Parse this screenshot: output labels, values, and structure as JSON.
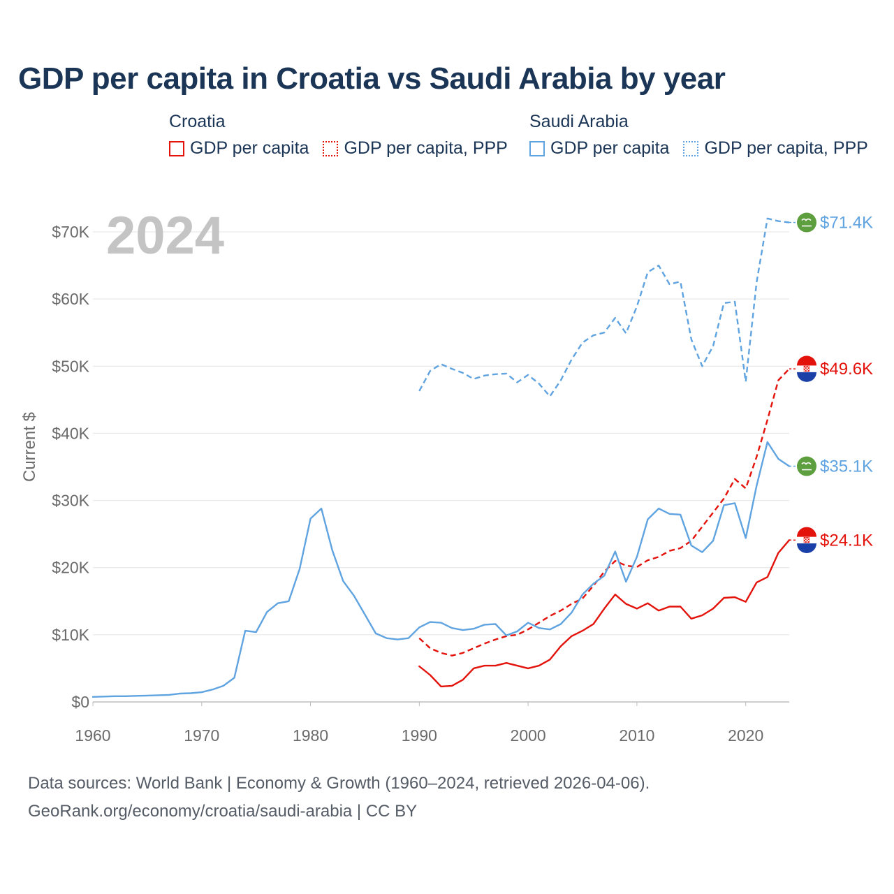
{
  "title": "GDP per capita in Croatia vs Saudi Arabia by year",
  "legend": {
    "croatia": {
      "group": "Croatia",
      "items": [
        {
          "label": "GDP per capita",
          "style": "solid",
          "color": "#e3120b"
        },
        {
          "label": "GDP per capita, PPP",
          "style": "dotted",
          "color": "#e3120b"
        }
      ]
    },
    "saudi": {
      "group": "Saudi Arabia",
      "items": [
        {
          "label": "GDP per capita",
          "style": "solid",
          "color": "#5fa3e0"
        },
        {
          "label": "GDP per capita, PPP",
          "style": "dotted",
          "color": "#5fa3e0"
        }
      ]
    }
  },
  "year_watermark": "2024",
  "end_labels": [
    {
      "text": "$71.4K",
      "color": "#5fa3e0",
      "flag": "saudi-flag",
      "value": 71400
    },
    {
      "text": "$49.6K",
      "color": "#e3120b",
      "flag": "croatia-flag",
      "value": 49600
    },
    {
      "text": "$35.1K",
      "color": "#5fa3e0",
      "flag": "saudi-flag",
      "value": 35100
    },
    {
      "text": "$24.1K",
      "color": "#e3120b",
      "flag": "croatia-flag",
      "value": 24100
    }
  ],
  "source_line_1": "Data sources: World Bank | Economy & Growth (1960–2024, retrieved 2026-04-06).",
  "source_line_2": "GeoRank.org/economy/croatia/saudi-arabia | CC BY",
  "chart_data": {
    "type": "line",
    "title": "GDP per capita in Croatia vs Saudi Arabia by year",
    "xlabel": "",
    "ylabel": "Current $",
    "xlim": [
      1960,
      2024
    ],
    "ylim": [
      0,
      70000
    ],
    "x_ticks": [
      1960,
      1970,
      1980,
      1990,
      2000,
      2010,
      2020
    ],
    "x_tick_labels": [
      "1960",
      "1970",
      "1980",
      "1990",
      "2000",
      "2010",
      "2020"
    ],
    "y_ticks": [
      0,
      10000,
      20000,
      30000,
      40000,
      50000,
      60000,
      70000
    ],
    "y_tick_labels": [
      "$0",
      "$10K",
      "$20K",
      "$30K",
      "$40K",
      "$50K",
      "$60K",
      "$70K"
    ],
    "grid": true,
    "series": [
      {
        "name": "Saudi Arabia GDP per capita, PPP",
        "country": "Saudi Arabia",
        "color": "#5fa3e0",
        "dashed": true,
        "x": [
          1990,
          1991,
          1992,
          1993,
          1994,
          1995,
          1996,
          1997,
          1998,
          1999,
          2000,
          2001,
          2002,
          2003,
          2004,
          2005,
          2006,
          2007,
          2008,
          2009,
          2010,
          2011,
          2012,
          2013,
          2014,
          2015,
          2016,
          2017,
          2018,
          2019,
          2020,
          2021,
          2022,
          2023,
          2024
        ],
        "y": [
          46300,
          49300,
          50300,
          49600,
          49000,
          48100,
          48600,
          48800,
          48900,
          47600,
          48700,
          47400,
          45500,
          47900,
          51000,
          53500,
          54600,
          55000,
          57200,
          54900,
          58900,
          64000,
          65000,
          62200,
          62600,
          54000,
          50000,
          53000,
          59400,
          59600,
          47700,
          62500,
          72000,
          71600,
          71400
        ]
      },
      {
        "name": "Croatia GDP per capita, PPP",
        "country": "Croatia",
        "color": "#e3120b",
        "dashed": true,
        "x": [
          1990,
          1991,
          1992,
          1993,
          1994,
          1995,
          1996,
          1997,
          1998,
          1999,
          2000,
          2001,
          2002,
          2003,
          2004,
          2005,
          2006,
          2007,
          2008,
          2009,
          2010,
          2011,
          2012,
          2013,
          2014,
          2015,
          2016,
          2017,
          2018,
          2019,
          2020,
          2021,
          2022,
          2023,
          2024
        ],
        "y": [
          9500,
          8000,
          7300,
          6900,
          7300,
          8000,
          8700,
          9300,
          9800,
          10000,
          10800,
          11800,
          12800,
          13600,
          14600,
          15400,
          17300,
          19400,
          21000,
          20300,
          20100,
          21100,
          21600,
          22500,
          22900,
          24000,
          26100,
          28200,
          30300,
          33200,
          31800,
          36500,
          42000,
          47900,
          49600
        ]
      },
      {
        "name": "Saudi Arabia GDP per capita",
        "country": "Saudi Arabia",
        "color": "#5fa3e0",
        "dashed": false,
        "x": [
          1960,
          1961,
          1962,
          1963,
          1964,
          1965,
          1966,
          1967,
          1968,
          1969,
          1970,
          1971,
          1972,
          1973,
          1974,
          1975,
          1976,
          1977,
          1978,
          1979,
          1980,
          1981,
          1982,
          1983,
          1984,
          1985,
          1986,
          1987,
          1988,
          1989,
          1990,
          1991,
          1992,
          1993,
          1994,
          1995,
          1996,
          1997,
          1998,
          1999,
          2000,
          2001,
          2002,
          2003,
          2004,
          2005,
          2006,
          2007,
          2008,
          2009,
          2010,
          2011,
          2012,
          2013,
          2014,
          2015,
          2016,
          2017,
          2018,
          2019,
          2020,
          2021,
          2022,
          2023,
          2024
        ],
        "y": [
          750,
          800,
          850,
          850,
          900,
          950,
          1000,
          1050,
          1250,
          1300,
          1450,
          1850,
          2400,
          3600,
          10600,
          10400,
          13400,
          14700,
          15000,
          19800,
          27300,
          28800,
          22600,
          18000,
          15800,
          13000,
          10200,
          9500,
          9300,
          9500,
          11100,
          11900,
          11800,
          11000,
          10700,
          10900,
          11500,
          11600,
          9900,
          10500,
          11800,
          11000,
          10800,
          11600,
          13300,
          16000,
          17600,
          18800,
          22400,
          17900,
          21600,
          27200,
          28800,
          28000,
          27900,
          23300,
          22300,
          24000,
          29300,
          29600,
          24400,
          32200,
          38700,
          36200,
          35100
        ]
      },
      {
        "name": "Croatia GDP per capita",
        "country": "Croatia",
        "color": "#e3120b",
        "dashed": false,
        "x": [
          1990,
          1991,
          1992,
          1993,
          1994,
          1995,
          1996,
          1997,
          1998,
          1999,
          2000,
          2001,
          2002,
          2003,
          2004,
          2005,
          2006,
          2007,
          2008,
          2009,
          2010,
          2011,
          2012,
          2013,
          2014,
          2015,
          2016,
          2017,
          2018,
          2019,
          2020,
          2021,
          2022,
          2023,
          2024
        ],
        "y": [
          5300,
          4000,
          2300,
          2400,
          3300,
          5000,
          5400,
          5400,
          5800,
          5400,
          5000,
          5400,
          6300,
          8300,
          9800,
          10600,
          11600,
          13900,
          16000,
          14600,
          13900,
          14700,
          13600,
          14200,
          14200,
          12400,
          12900,
          13900,
          15500,
          15600,
          14900,
          17800,
          18600,
          22200,
          24100
        ]
      }
    ]
  }
}
